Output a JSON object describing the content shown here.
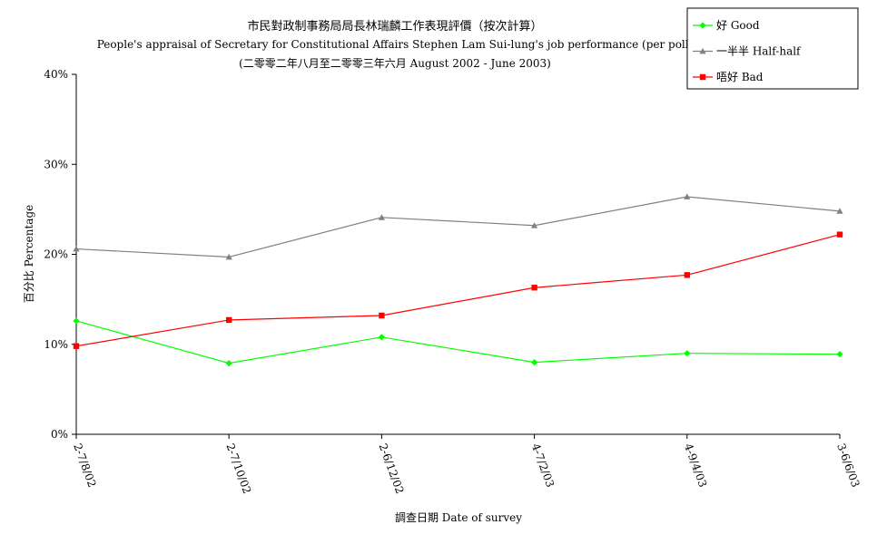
{
  "chart_data": {
    "type": "line",
    "title_zh": "市民對政制事務局局長林瑞麟工作表現評價（按次計算）",
    "title_en": "People's appraisal of Secretary for Constitutional Affairs Stephen Lam Sui-lung's job performance (per poll)",
    "subtitle": "(二零零二年八月至二零零三年六月 August 2002 - June 2003)",
    "xlabel": "調查日期 Date of survey",
    "ylabel": "百分比 Percentage",
    "categories": [
      "2-7/8/02",
      "2-7/10/02",
      "2-6/12/02",
      "4-7/2/03",
      "4-9/4/03",
      "3-6/6/03"
    ],
    "ylim": [
      0,
      40
    ],
    "yticks": [
      "0%",
      "10%",
      "20%",
      "30%",
      "40%"
    ],
    "grid": false,
    "legend_position": "top-right",
    "series": [
      {
        "name": "好 Good",
        "color": "#00ff00",
        "marker": "diamond",
        "values": [
          12.6,
          7.9,
          10.8,
          8.0,
          9.0,
          8.9
        ]
      },
      {
        "name": "一半半 Half-half",
        "color": "#808080",
        "marker": "triangle",
        "values": [
          20.6,
          19.7,
          24.1,
          23.2,
          26.4,
          24.8
        ]
      },
      {
        "name": "唔好 Bad",
        "color": "#ff0000",
        "marker": "square",
        "values": [
          9.8,
          12.7,
          13.2,
          16.3,
          17.7,
          22.2
        ]
      }
    ]
  }
}
